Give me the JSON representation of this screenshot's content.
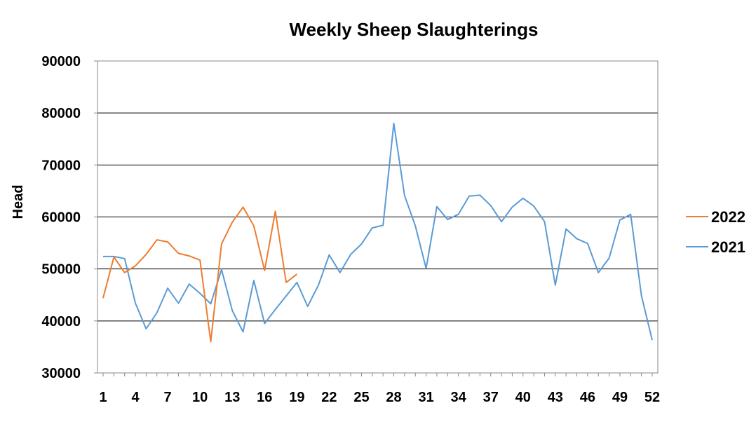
{
  "chart_data": {
    "type": "line",
    "title": "Weekly Sheep Slaughterings",
    "xlabel": "",
    "ylabel": "Head",
    "ylim": [
      30000,
      90000
    ],
    "y_ticks": [
      "30000",
      "40000",
      "50000",
      "60000",
      "70000",
      "80000",
      "90000"
    ],
    "x_tick_labels": [
      "1",
      "4",
      "7",
      "10",
      "13",
      "16",
      "19",
      "22",
      "25",
      "28",
      "31",
      "34",
      "37",
      "40",
      "43",
      "46",
      "49",
      "52"
    ],
    "grid": "horizontal",
    "legend_position": "right",
    "series": [
      {
        "name": "2022",
        "color": "#ED7D31",
        "x": [
          1,
          2,
          3,
          4,
          5,
          6,
          7,
          8,
          9,
          10,
          11,
          12,
          13,
          14,
          15,
          16,
          17,
          18,
          19
        ],
        "values": [
          44400,
          52300,
          49300,
          50600,
          52800,
          55600,
          55200,
          53000,
          52500,
          51700,
          36000,
          54800,
          59000,
          61900,
          58300,
          49700,
          61100,
          47400,
          49000
        ]
      },
      {
        "name": "2021",
        "color": "#5B9BD5",
        "x": [
          1,
          2,
          3,
          4,
          5,
          6,
          7,
          8,
          9,
          10,
          11,
          12,
          13,
          14,
          15,
          16,
          17,
          18,
          19,
          20,
          21,
          22,
          23,
          24,
          25,
          26,
          27,
          28,
          29,
          30,
          31,
          32,
          33,
          34,
          35,
          36,
          37,
          38,
          39,
          40,
          41,
          42,
          43,
          44,
          45,
          46,
          47,
          48,
          49,
          50,
          51,
          52
        ],
        "values": [
          52400,
          52400,
          52000,
          43400,
          38500,
          41600,
          46300,
          43400,
          47100,
          45300,
          43300,
          49900,
          42000,
          37900,
          47800,
          39500,
          42200,
          44800,
          47400,
          42800,
          46900,
          52700,
          49300,
          52800,
          54800,
          57900,
          58400,
          78000,
          64100,
          58300,
          50100,
          62000,
          59500,
          60500,
          64000,
          64200,
          62200,
          59100,
          61900,
          63600,
          62100,
          59100,
          46900,
          57700,
          55800,
          54900,
          49300,
          52100,
          59400,
          60500,
          44900,
          36300
        ]
      }
    ]
  }
}
